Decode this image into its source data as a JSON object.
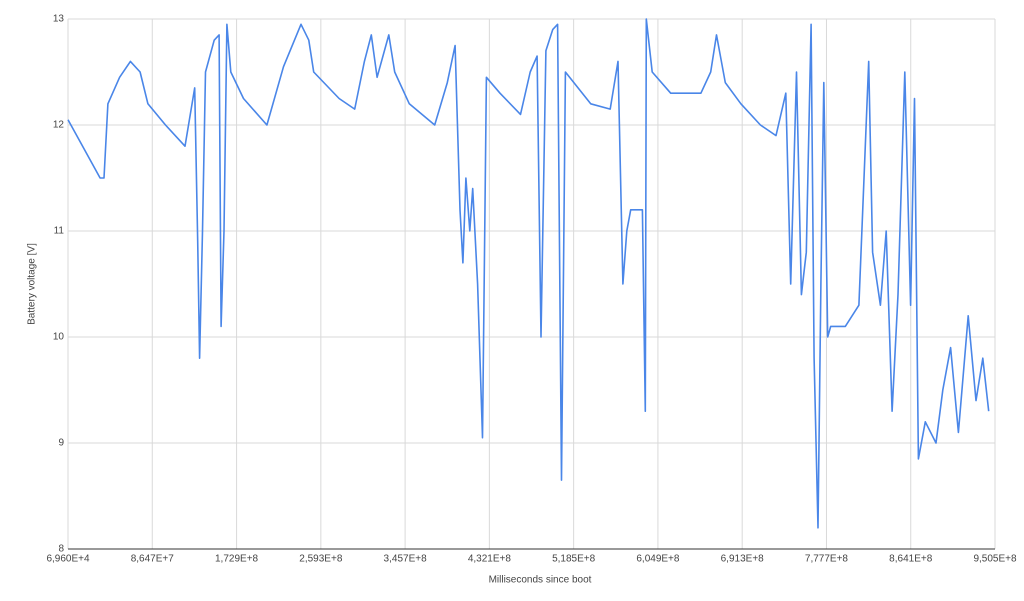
{
  "chart_data": {
    "type": "line",
    "x_label": "Milliseconds since boot",
    "y_label": "Battery voltage [V]",
    "xlim": [
      69600,
      950500000
    ],
    "xticks": [
      {
        "value": 69600,
        "label": "6,960E+4"
      },
      {
        "value": 86470000,
        "label": "8,647E+7"
      },
      {
        "value": 172900000,
        "label": "1,729E+8"
      },
      {
        "value": 259300000,
        "label": "2,593E+8"
      },
      {
        "value": 345700000,
        "label": "3,457E+8"
      },
      {
        "value": 432100000,
        "label": "4,321E+8"
      },
      {
        "value": 518500000,
        "label": "5,185E+8"
      },
      {
        "value": 604900000,
        "label": "6,049E+8"
      },
      {
        "value": 691300000,
        "label": "6,913E+8"
      },
      {
        "value": 777700000,
        "label": "7,777E+8"
      },
      {
        "value": 864100000,
        "label": "8,641E+8"
      },
      {
        "value": 950500000,
        "label": "9,505E+8"
      }
    ],
    "ylim": [
      8,
      13
    ],
    "yticks": [
      8,
      9,
      10,
      11,
      12,
      13
    ],
    "grid": true,
    "series": [
      {
        "color": "#4a86e8",
        "x": [
          69600,
          33000000,
          37000000,
          41000000,
          53000000,
          64000000,
          74000000,
          82000000,
          100000000,
          120000000,
          130000000,
          133000000,
          135000000,
          138000000,
          141000000,
          150000000,
          155000000,
          157000000,
          160000000,
          163000000,
          167000000,
          180000000,
          204000000,
          221000000,
          239000000,
          247000000,
          252000000,
          278000000,
          294000000,
          304000000,
          311000000,
          317000000,
          329000000,
          335000000,
          350000000,
          376000000,
          389000000,
          397000000,
          402000000,
          405000000,
          408000000,
          412000000,
          415000000,
          420000000,
          425000000,
          429000000,
          443000000,
          464000000,
          474000000,
          481000000,
          485000000,
          490000000,
          497000000,
          502000000,
          506000000,
          510000000,
          536000000,
          556000000,
          564000000,
          569000000,
          573000000,
          577000000,
          589000000,
          592000000,
          593000000,
          599000000,
          618000000,
          649000000,
          659000000,
          665000000,
          674000000,
          690000000,
          710000000,
          726000000,
          736000000,
          741000000,
          747000000,
          752000000,
          757000000,
          762000000,
          765000000,
          769000000,
          772000000,
          775000000,
          779000000,
          782000000,
          797000000,
          811000000,
          821000000,
          825000000,
          833000000,
          839000000,
          845000000,
          851000000,
          858000000,
          864000000,
          868000000,
          872000000,
          879000000,
          890000000,
          897000000,
          905000000,
          913000000,
          923000000,
          931000000,
          938000000,
          944000000
        ],
        "values": [
          12.05,
          11.5,
          11.5,
          12.2,
          12.45,
          12.6,
          12.5,
          12.2,
          12.0,
          11.8,
          12.35,
          10.9,
          9.8,
          11.0,
          12.5,
          12.8,
          12.85,
          10.1,
          11.0,
          12.95,
          12.5,
          12.25,
          12.0,
          12.55,
          12.95,
          12.8,
          12.5,
          12.25,
          12.15,
          12.6,
          12.85,
          12.45,
          12.85,
          12.5,
          12.2,
          12.0,
          12.4,
          12.75,
          11.2,
          10.7,
          11.5,
          11.0,
          11.4,
          10.5,
          9.05,
          12.45,
          12.3,
          12.1,
          12.5,
          12.65,
          10.0,
          12.7,
          12.9,
          12.95,
          8.65,
          12.5,
          12.2,
          12.15,
          12.6,
          10.5,
          11.0,
          11.2,
          11.2,
          9.3,
          13.0,
          12.5,
          12.3,
          12.3,
          12.5,
          12.85,
          12.4,
          12.2,
          12.0,
          11.9,
          12.3,
          10.5,
          12.5,
          10.4,
          10.8,
          12.95,
          9.8,
          8.2,
          10.5,
          12.4,
          10.0,
          10.1,
          10.1,
          10.3,
          12.6,
          10.8,
          10.3,
          11.0,
          9.3,
          10.4,
          12.5,
          10.3,
          12.25,
          8.85,
          9.2,
          9.0,
          9.5,
          9.9,
          9.1,
          10.2,
          9.4,
          9.8,
          9.3
        ]
      }
    ]
  }
}
